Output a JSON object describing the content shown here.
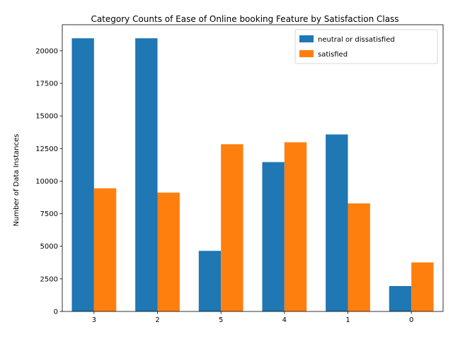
{
  "chart_data": {
    "type": "bar",
    "title": "Category Counts of Ease of Online booking Feature by Satisfaction Class",
    "xlabel": "",
    "ylabel": "Number of Data Instances",
    "categories": [
      "3",
      "2",
      "5",
      "4",
      "1",
      "0"
    ],
    "series": [
      {
        "name": "neutral or dissatisfied",
        "color": "#1f77b4",
        "values": [
          20960,
          20960,
          4650,
          11460,
          13580,
          1950
        ]
      },
      {
        "name": "satisfied",
        "color": "#ff7f0e",
        "values": [
          9450,
          9120,
          12830,
          12980,
          8290,
          3760
        ]
      }
    ],
    "ylim": [
      0,
      22000
    ],
    "yticks": [
      0,
      2500,
      5000,
      7500,
      10000,
      12500,
      15000,
      17500,
      20000
    ],
    "ytick_labels": [
      "0",
      "2500",
      "5000",
      "7500",
      "10000",
      "12500",
      "15000",
      "17500",
      "20000"
    ],
    "grid": false,
    "legend_position": "top-right"
  }
}
